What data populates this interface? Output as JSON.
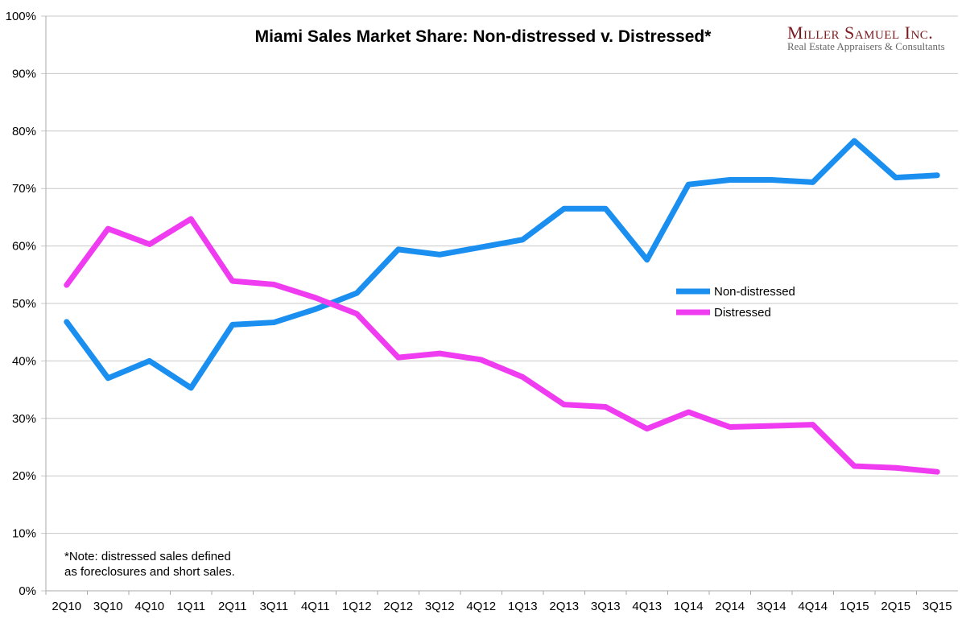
{
  "chart_data": {
    "type": "line",
    "title": "Miami Sales Market Share: Non-distressed v. Distressed*",
    "xlabel": "",
    "ylabel": "",
    "ylim": [
      0,
      100
    ],
    "yticks": [
      "0%",
      "10%",
      "20%",
      "30%",
      "40%",
      "50%",
      "60%",
      "70%",
      "80%",
      "90%",
      "100%"
    ],
    "grid": true,
    "legend_position": "center-right",
    "categories": [
      "2Q10",
      "3Q10",
      "4Q10",
      "1Q11",
      "2Q11",
      "3Q11",
      "4Q11",
      "1Q12",
      "2Q12",
      "3Q12",
      "4Q12",
      "1Q13",
      "2Q13",
      "3Q13",
      "4Q13",
      "1Q14",
      "2Q14",
      "3Q14",
      "4Q14",
      "1Q15",
      "2Q15",
      "3Q15"
    ],
    "series": [
      {
        "name": "Non-distressed",
        "color": "#1a8ff0",
        "values": [
          46.8,
          37.0,
          40.0,
          35.3,
          46.3,
          46.7,
          49.0,
          51.8,
          59.4,
          58.5,
          59.8,
          61.1,
          66.5,
          66.5,
          57.6,
          70.7,
          71.5,
          71.5,
          71.1,
          78.3,
          71.9,
          72.3
        ]
      },
      {
        "name": "Distressed",
        "color": "#f03cf0",
        "values": [
          53.2,
          63.0,
          60.3,
          64.7,
          53.9,
          53.3,
          51.0,
          48.2,
          40.6,
          41.3,
          40.2,
          37.2,
          32.4,
          32.0,
          28.2,
          31.1,
          28.5,
          28.7,
          28.9,
          21.7,
          21.4,
          20.7
        ]
      }
    ],
    "annotation": [
      "*Note: distressed sales defined",
      "as foreclosures and short sales."
    ]
  },
  "logo": {
    "name": "Miller Samuel Inc.",
    "tagline": "Real Estate Appraisers & Consultants"
  }
}
